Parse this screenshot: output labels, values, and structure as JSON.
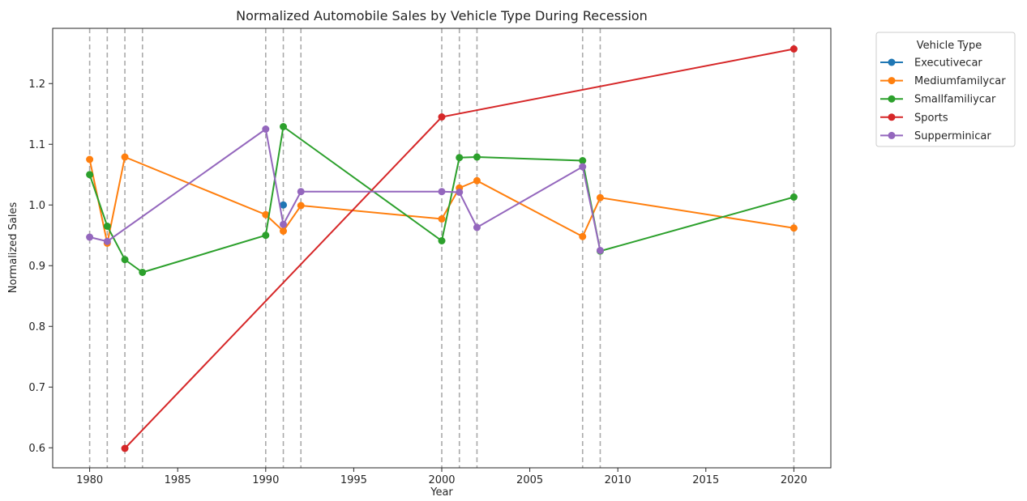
{
  "chart_data": {
    "type": "line",
    "title": "Normalized Automobile Sales by Vehicle Type During Recession",
    "xlabel": "Year",
    "ylabel": "Normalized Sales",
    "xlim": [
      1977.9,
      2022.1
    ],
    "ylim": [
      0.567,
      1.291
    ],
    "xticks": [
      1980,
      1985,
      1990,
      1995,
      2000,
      2005,
      2010,
      2015,
      2020
    ],
    "yticks": [
      0.6,
      0.7,
      0.8,
      0.9,
      1.0,
      1.1,
      1.2
    ],
    "ytick_labels": [
      "0.6",
      "0.7",
      "0.8",
      "0.9",
      "1.0",
      "1.1",
      "1.2"
    ],
    "recession_years": [
      1980,
      1981,
      1982,
      1983,
      1990,
      1991,
      1992,
      2000,
      2001,
      2002,
      2008,
      2009,
      2020
    ],
    "grid": false,
    "legend": {
      "title": "Vehicle Type",
      "placement": "upper right outside"
    },
    "series": [
      {
        "name": "Executivecar",
        "color": "#1f77b4",
        "x": [
          1991
        ],
        "y": [
          1.0
        ]
      },
      {
        "name": "Mediumfamilycar",
        "color": "#ff7f0e",
        "x": [
          1980,
          1981,
          1982,
          1990,
          1991,
          1992,
          2000,
          2001,
          2002,
          2008,
          2009,
          2020
        ],
        "y": [
          1.075,
          0.937,
          1.079,
          0.984,
          0.957,
          0.999,
          0.977,
          1.028,
          1.04,
          0.948,
          1.012,
          0.962
        ]
      },
      {
        "name": "Smallfamiliycar",
        "color": "#2ca02c",
        "x": [
          1980,
          1981,
          1982,
          1983,
          1990,
          1991,
          2000,
          2001,
          2002,
          2008,
          2009,
          2020
        ],
        "y": [
          1.05,
          0.965,
          0.91,
          0.889,
          0.95,
          1.129,
          0.941,
          1.078,
          1.079,
          1.073,
          0.924,
          1.013
        ]
      },
      {
        "name": "Sports",
        "color": "#d62728",
        "x": [
          1982,
          2000,
          2020
        ],
        "y": [
          0.599,
          1.145,
          1.257
        ]
      },
      {
        "name": "Supperminicar",
        "color": "#9467bd",
        "x": [
          1980,
          1981,
          1990,
          1991,
          1992,
          2000,
          2001,
          2002,
          2008,
          2009
        ],
        "y": [
          0.947,
          0.94,
          1.125,
          0.968,
          1.022,
          1.022,
          1.021,
          0.963,
          1.063,
          0.925
        ]
      }
    ]
  }
}
